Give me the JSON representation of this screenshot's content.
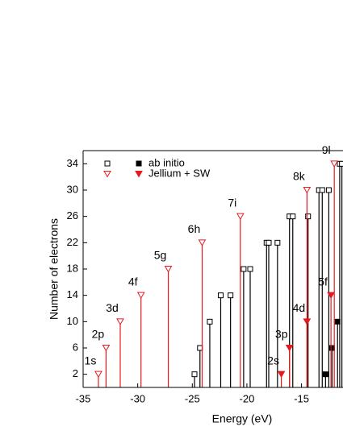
{
  "chart_data": {
    "type": "stem",
    "x_label": "Energy (eV)",
    "y_label": "Number of electrons",
    "xlim": [
      -35,
      -11.2
    ],
    "ylim": [
      0,
      36
    ],
    "xticks": [
      -35,
      -30,
      -25,
      -20,
      -15
    ],
    "yticks": [
      2,
      6,
      10,
      14,
      18,
      22,
      26,
      30,
      34
    ],
    "series": [
      {
        "name": "ab initio",
        "color": "#000000",
        "marker": "square",
        "open": {
          "x": [
            -24.8,
            -24.3,
            -23.4,
            -22.4,
            -21.5,
            -20.3,
            -19.7,
            -18.2,
            -18.0,
            -17.2,
            -16.1,
            -15.8,
            -14.4,
            -13.4,
            -13.1,
            -12.5,
            -11.5,
            -11.3
          ],
          "values": [
            2,
            6,
            10,
            14,
            14,
            18,
            18,
            22,
            22,
            22,
            26,
            26,
            26,
            30,
            30,
            30,
            34,
            34
          ]
        },
        "filled": {
          "x": [
            -12.8,
            -12.2,
            -11.7
          ],
          "values": [
            2,
            6,
            10
          ]
        }
      },
      {
        "name": "Jellium + SW",
        "color": "#e8191c",
        "marker": "triangle",
        "open": {
          "x": [
            -33.6,
            -32.9,
            -31.6,
            -29.7,
            -27.2,
            -24.1,
            -20.6,
            -14.5,
            -12.0
          ],
          "values": [
            2,
            6,
            10,
            14,
            18,
            22,
            26,
            30,
            34
          ],
          "labels": [
            "1s",
            "2p",
            "3d",
            "4f",
            "5g",
            "6h",
            "7i",
            "8k",
            "9l"
          ]
        },
        "filled": {
          "x": [
            -16.85,
            -16.1,
            -14.5,
            -12.3
          ],
          "values": [
            2,
            6,
            10,
            14
          ],
          "labels": [
            "2s",
            "3p",
            "4d",
            "5f"
          ]
        }
      }
    ]
  }
}
